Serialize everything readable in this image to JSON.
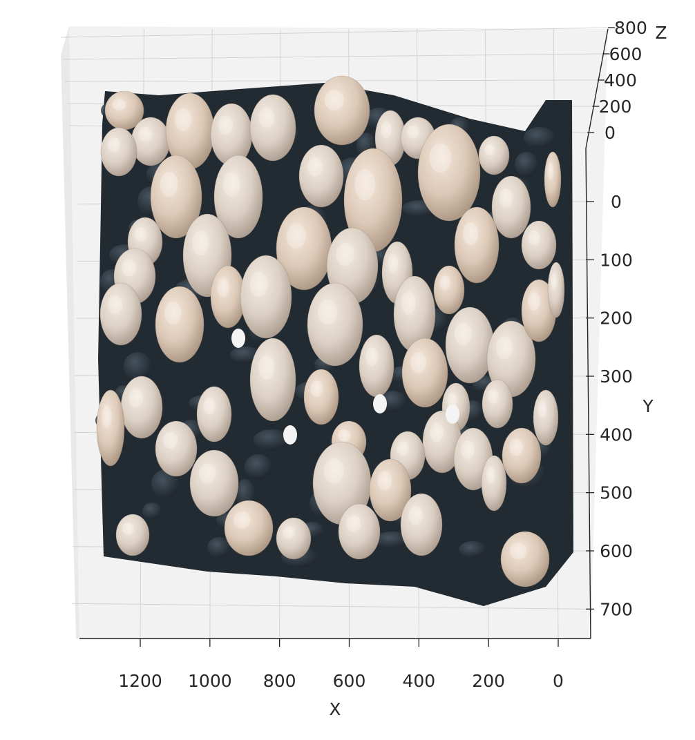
{
  "chart_data": {
    "type": "scatter",
    "projection": "3d",
    "view": "top-down",
    "description_visible": "3D point cloud of a mushroom bed, colored by RGB",
    "xlabel": "X",
    "ylabel": "Y",
    "zlabel": "Z",
    "x_ticks": [
      1200,
      1000,
      800,
      600,
      400,
      200,
      0
    ],
    "y_ticks": [
      0,
      100,
      200,
      300,
      400,
      500,
      600,
      700
    ],
    "z_ticks": [
      0,
      200,
      400,
      600,
      800
    ],
    "xlim": [
      1320,
      -60
    ],
    "ylim": [
      -100,
      770
    ],
    "zlim": [
      -150,
      800
    ],
    "x_inverted": true,
    "grid": true,
    "colors": {
      "pane": "#f2f2f2",
      "grid": "#d3d3d3",
      "substrate": "#232b32",
      "cap_light": "#e7ddd3",
      "cap_shadow": "#b4a699"
    }
  }
}
